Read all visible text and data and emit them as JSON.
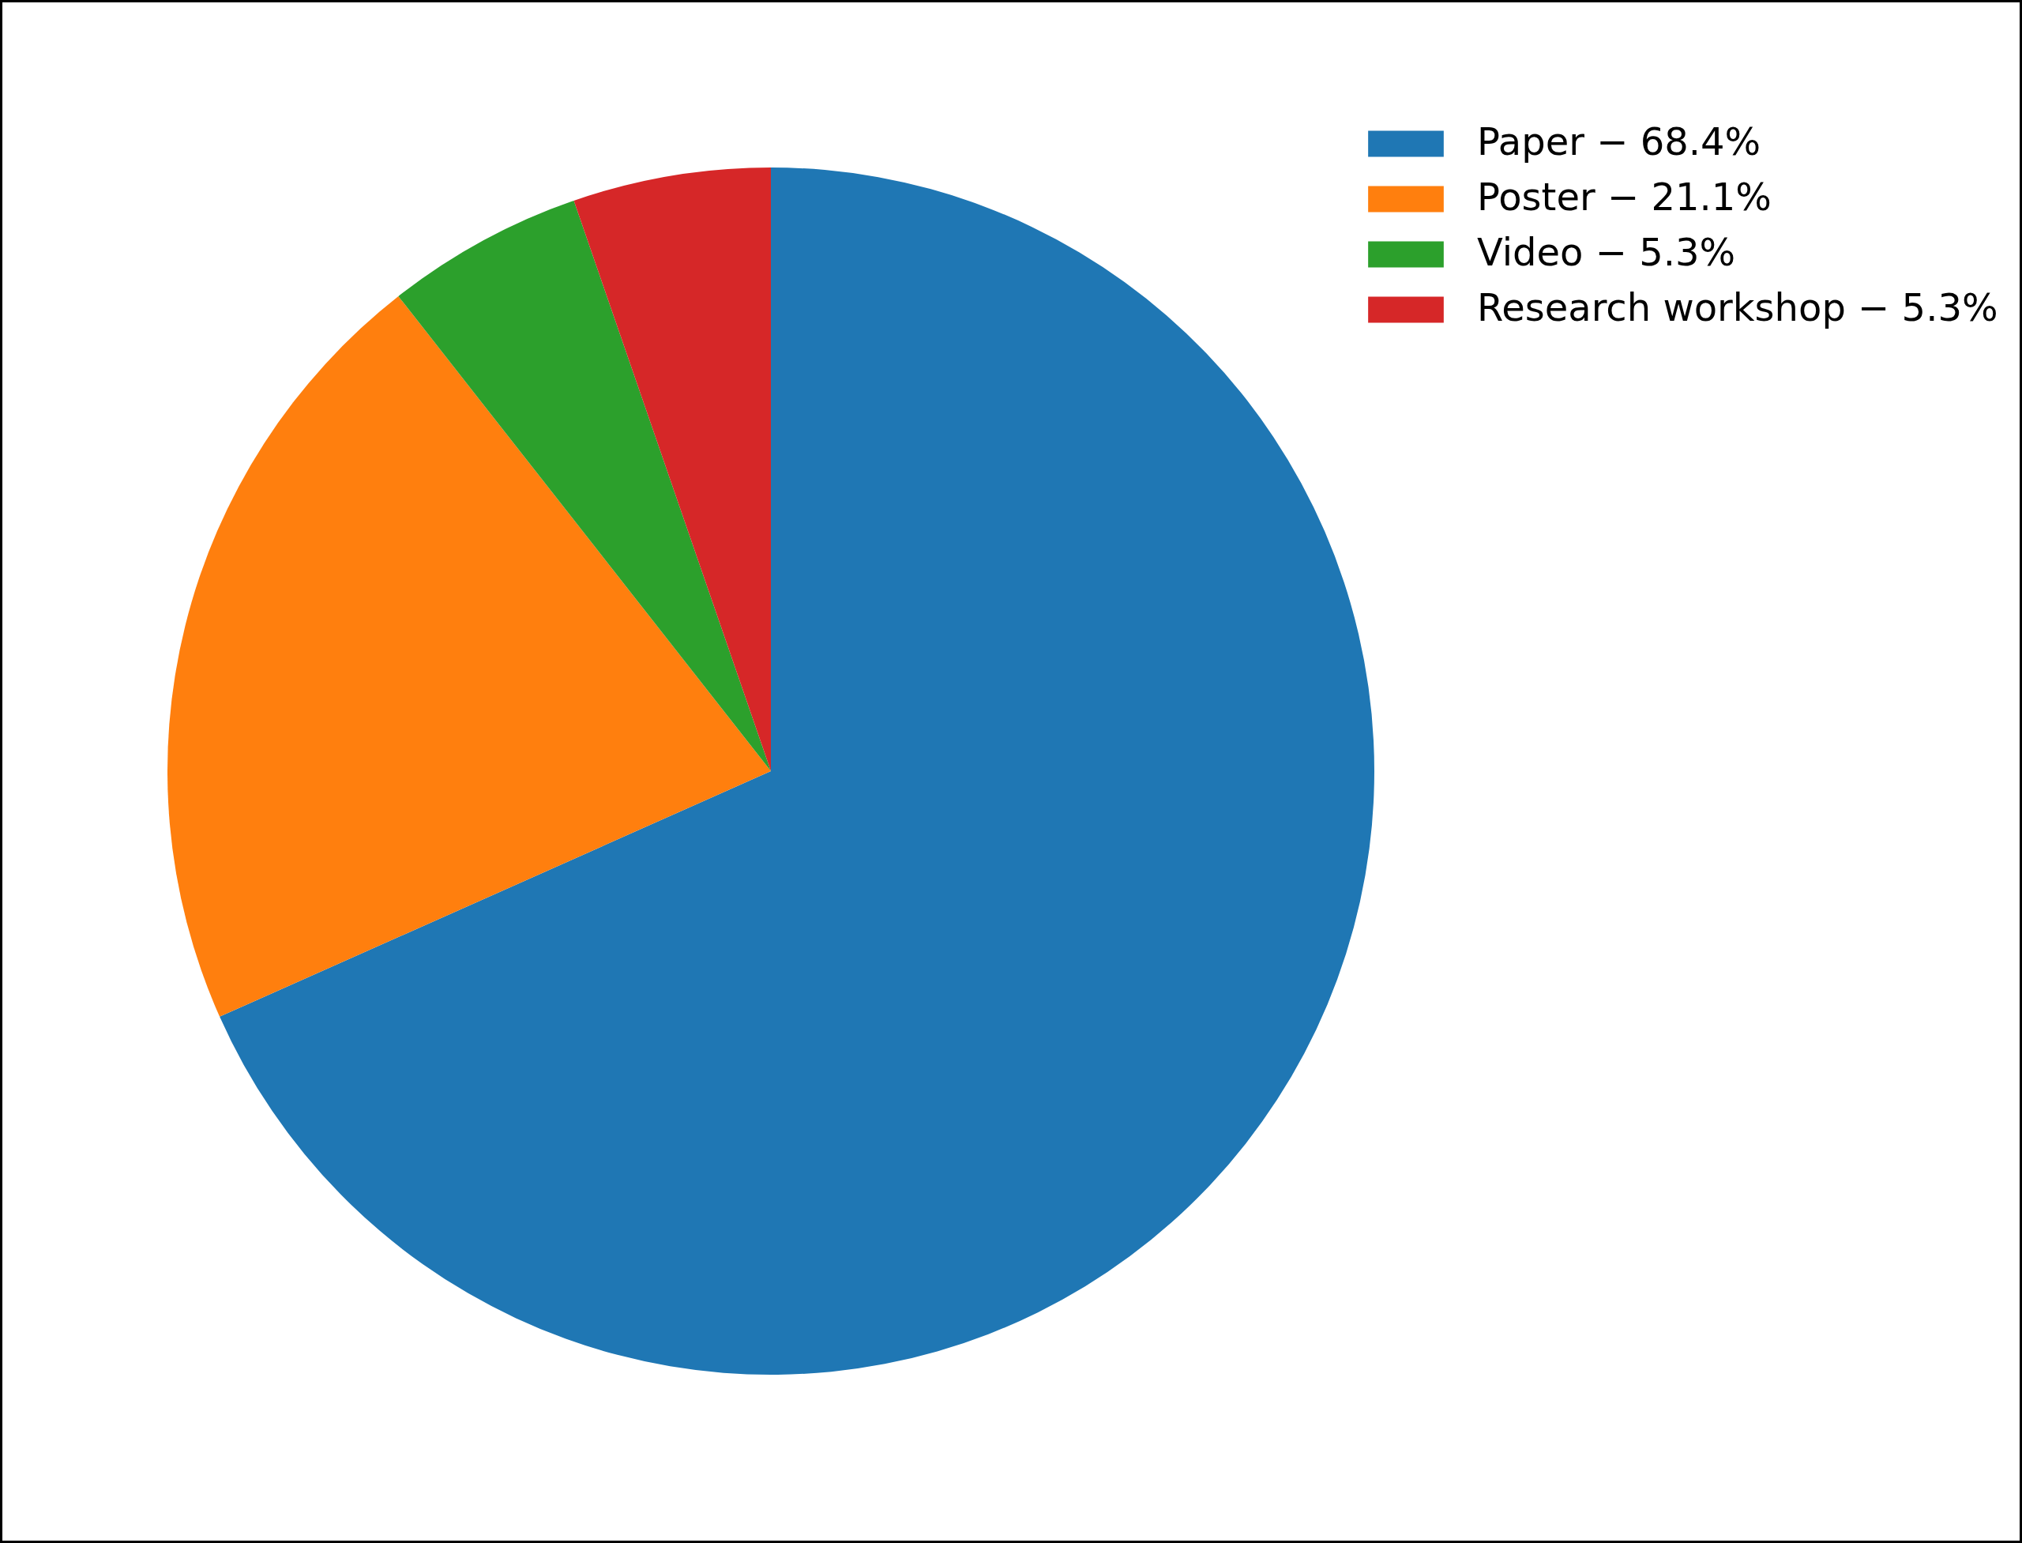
{
  "chart_data": {
    "type": "pie",
    "categories": [
      "Paper − 68.4%",
      "Poster − 21.1%",
      "Video − 5.3%",
      "Research workshop − 5.3%"
    ],
    "values": [
      68.4,
      21.1,
      5.3,
      5.3
    ],
    "colors": [
      "#1f77b4",
      "#ff7f0e",
      "#2ca02c",
      "#d62728"
    ],
    "legend": "top right"
  }
}
